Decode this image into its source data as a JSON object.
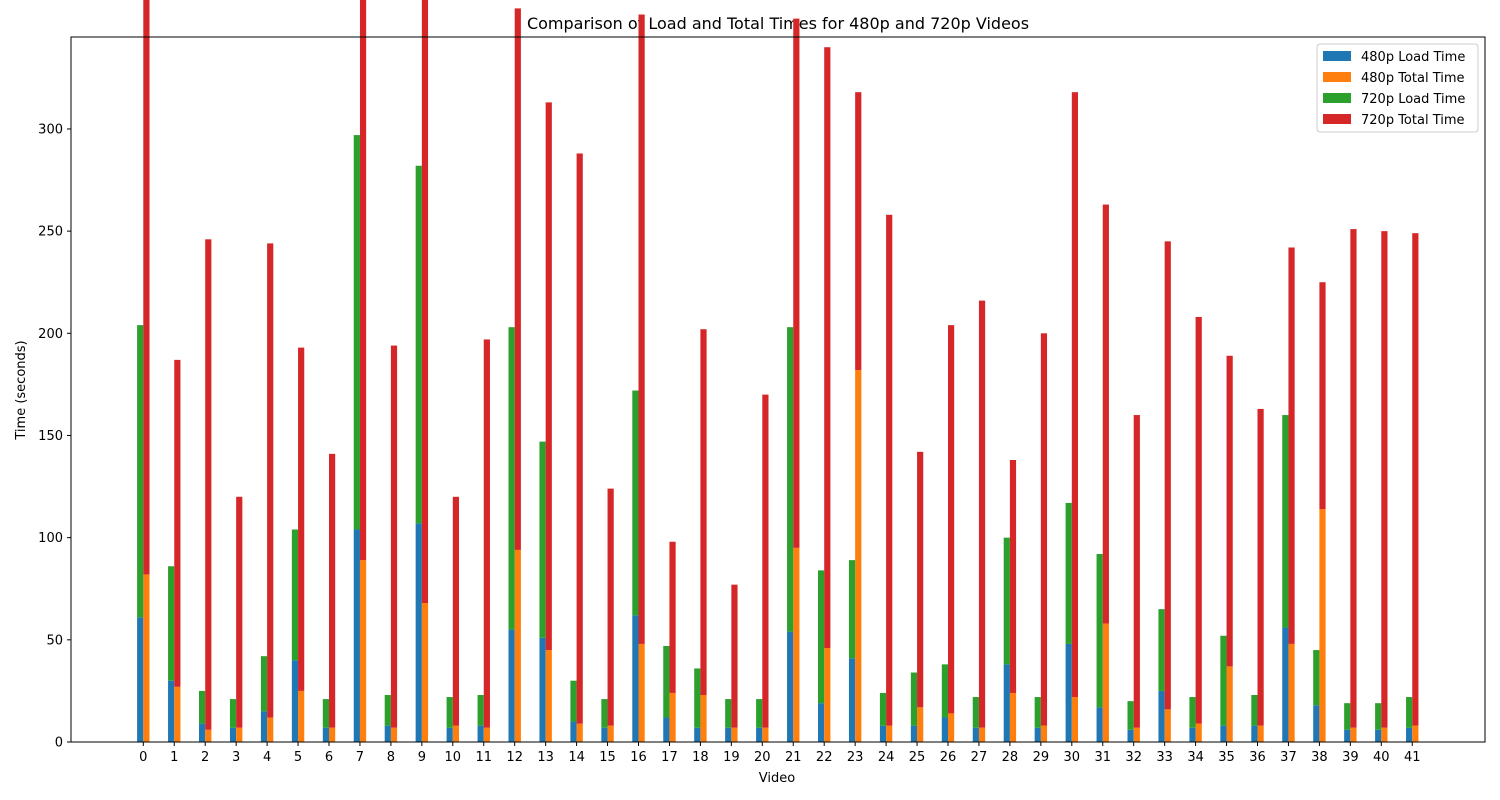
{
  "chart_data": {
    "type": "bar",
    "title": "Comparison of Load and Total Times for 480p and 720p Videos",
    "xlabel": "Video",
    "ylabel": "Time (seconds)",
    "ylim": [
      0,
      345
    ],
    "yticks": [
      0,
      50,
      100,
      150,
      200,
      250,
      300
    ],
    "legend_position": "top-right",
    "grid": false,
    "categories": [
      "0",
      "1",
      "2",
      "3",
      "4",
      "5",
      "6",
      "7",
      "8",
      "9",
      "10",
      "11",
      "12",
      "13",
      "14",
      "15",
      "16",
      "17",
      "18",
      "19",
      "20",
      "21",
      "22",
      "23",
      "24",
      "25",
      "26",
      "27",
      "28",
      "29",
      "30",
      "31",
      "32",
      "33",
      "34",
      "35",
      "36",
      "37",
      "38",
      "39",
      "40",
      "41"
    ],
    "series": [
      {
        "name": "480p Load Time",
        "color": "#1f77b4",
        "group": "480p-load",
        "values": [
          61,
          30,
          9,
          7,
          15,
          40,
          7,
          104,
          8,
          107,
          7,
          8,
          55,
          51,
          10,
          7,
          62,
          12,
          7,
          7,
          7,
          54,
          19,
          41,
          8,
          8,
          12,
          7,
          38,
          7,
          48,
          17,
          6,
          25,
          7,
          8,
          8,
          56,
          18,
          6,
          6,
          7
        ]
      },
      {
        "name": "480p Total Time",
        "color": "#ff7f0e",
        "group": "480p-total",
        "values": [
          82,
          27,
          6,
          7,
          12,
          25,
          7,
          89,
          7,
          68,
          8,
          7,
          94,
          45,
          9,
          8,
          48,
          24,
          23,
          7,
          7,
          95,
          46,
          182,
          8,
          17,
          14,
          7,
          24,
          8,
          22,
          58,
          7,
          16,
          9,
          37,
          8,
          48,
          114,
          7,
          7,
          8
        ]
      },
      {
        "name": "720p Load Time",
        "color": "#2ca02c",
        "group": "720p-load",
        "values": [
          143,
          56,
          16,
          14,
          27,
          64,
          14,
          193,
          15,
          175,
          15,
          15,
          148,
          96,
          20,
          14,
          110,
          35,
          29,
          14,
          14,
          149,
          65,
          48,
          16,
          26,
          26,
          15,
          62,
          15,
          69,
          75,
          14,
          40,
          15,
          44,
          15,
          104,
          27,
          13,
          13,
          15
        ]
      },
      {
        "name": "720p Total Time",
        "color": "#d62728",
        "group": "720p-total",
        "values": [
          331,
          160,
          240,
          113,
          232,
          168,
          134,
          296,
          187,
          313,
          112,
          190,
          265,
          268,
          279,
          116,
          308,
          74,
          179,
          70,
          163,
          259,
          294,
          136,
          250,
          125,
          190,
          209,
          114,
          192,
          296,
          205,
          153,
          229,
          199,
          152,
          155,
          194,
          111,
          244,
          243,
          241
        ]
      }
    ]
  }
}
